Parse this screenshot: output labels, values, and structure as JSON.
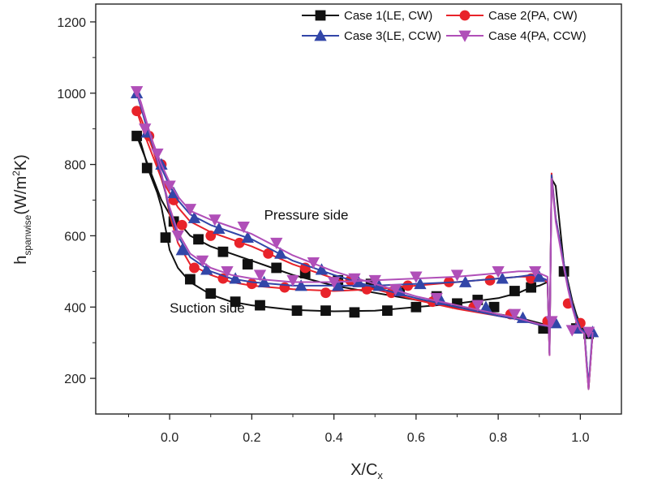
{
  "chart_data": {
    "type": "line",
    "xlabel": "X/C",
    "xlabel_sub": "x",
    "ylabel": "h",
    "ylabel_sub": "spanwise",
    "ylabel_unit_pre": "(W/m",
    "ylabel_unit_sup": "2",
    "ylabel_unit_post": "K)",
    "xlim": [
      -0.18,
      1.1
    ],
    "ylim": [
      100,
      1250
    ],
    "x_ticks": [
      0.0,
      0.2,
      0.4,
      0.6,
      0.8,
      1.0
    ],
    "x_tick_labels": [
      "0.0",
      "0.2",
      "0.4",
      "0.6",
      "0.8",
      "1.0"
    ],
    "y_ticks": [
      200,
      400,
      600,
      800,
      1000,
      1200
    ],
    "y_tick_labels": [
      "200",
      "400",
      "600",
      "800",
      "1000",
      "1200"
    ],
    "legend_placement": "top-right",
    "annotations": [
      {
        "text": "Pressure side",
        "x": 0.23,
        "y": 645
      },
      {
        "text": "Suction side",
        "x": 0.0,
        "y": 385
      }
    ],
    "series": [
      {
        "name": "Case 1(LE, CW)",
        "color": "#111111",
        "marker": "square",
        "suction": {
          "x": [
            -0.08,
            -0.07,
            -0.06,
            -0.05,
            -0.04,
            -0.03,
            -0.02,
            -0.01,
            0.0,
            0.02,
            0.05,
            0.1,
            0.15,
            0.2,
            0.3,
            0.4,
            0.5,
            0.6,
            0.7,
            0.8,
            0.85,
            0.88,
            0.9,
            0.92,
            0.925,
            0.93,
            0.94,
            0.96,
            0.97,
            0.98,
            0.99,
            1.0,
            1.01,
            1.015,
            1.02,
            1.03
          ],
          "y": [
            880,
            860,
            820,
            780,
            750,
            720,
            680,
            620,
            560,
            510,
            470,
            435,
            415,
            405,
            392,
            388,
            390,
            400,
            410,
            425,
            440,
            455,
            460,
            470,
            270,
            760,
            740,
            520,
            470,
            420,
            380,
            350,
            330,
            250,
            170,
            330
          ]
        },
        "pressure": {
          "x": [
            -0.08,
            -0.06,
            -0.04,
            -0.02,
            0.0,
            0.02,
            0.05,
            0.1,
            0.15,
            0.2,
            0.25,
            0.3,
            0.4,
            0.5,
            0.6,
            0.7,
            0.8,
            0.85,
            0.9,
            0.93
          ],
          "y": [
            880,
            820,
            760,
            700,
            660,
            640,
            600,
            570,
            550,
            530,
            510,
            490,
            460,
            440,
            420,
            400,
            380,
            370,
            355,
            345
          ]
        },
        "markers": [
          [
            -0.08,
            880
          ],
          [
            -0.055,
            790
          ],
          [
            -0.01,
            595
          ],
          [
            0.01,
            640
          ],
          [
            0.05,
            478
          ],
          [
            0.07,
            590
          ],
          [
            0.1,
            438
          ],
          [
            0.13,
            555
          ],
          [
            0.16,
            415
          ],
          [
            0.19,
            520
          ],
          [
            0.22,
            405
          ],
          [
            0.26,
            510
          ],
          [
            0.31,
            390
          ],
          [
            0.33,
            495
          ],
          [
            0.38,
            390
          ],
          [
            0.41,
            475
          ],
          [
            0.45,
            385
          ],
          [
            0.49,
            465
          ],
          [
            0.53,
            390
          ],
          [
            0.56,
            445
          ],
          [
            0.6,
            400
          ],
          [
            0.65,
            430
          ],
          [
            0.7,
            410
          ],
          [
            0.75,
            420
          ],
          [
            0.79,
            400
          ],
          [
            0.84,
            445
          ],
          [
            0.88,
            455
          ],
          [
            0.91,
            340
          ],
          [
            0.96,
            500
          ],
          [
            0.99,
            340
          ],
          [
            1.02,
            325
          ]
        ]
      },
      {
        "name": "Case 2(PA, CW)",
        "color": "#e8232a",
        "marker": "circle",
        "suction": {
          "x": [
            -0.08,
            -0.07,
            -0.06,
            -0.05,
            -0.04,
            -0.03,
            -0.02,
            -0.01,
            0.0,
            0.02,
            0.05,
            0.1,
            0.15,
            0.2,
            0.3,
            0.4,
            0.5,
            0.6,
            0.7,
            0.8,
            0.85,
            0.88,
            0.9,
            0.92,
            0.925,
            0.93,
            0.94,
            0.96,
            0.97,
            0.98,
            0.99,
            1.0,
            1.01,
            1.015,
            1.02,
            1.03
          ],
          "y": [
            950,
            930,
            900,
            870,
            840,
            800,
            760,
            720,
            660,
            580,
            520,
            490,
            470,
            460,
            450,
            445,
            450,
            460,
            470,
            480,
            485,
            485,
            480,
            470,
            265,
            775,
            650,
            520,
            460,
            410,
            370,
            340,
            330,
            240,
            170,
            330
          ]
        },
        "pressure": {
          "x": [
            -0.08,
            -0.06,
            -0.04,
            -0.02,
            0.0,
            0.02,
            0.05,
            0.1,
            0.15,
            0.2,
            0.25,
            0.3,
            0.4,
            0.5,
            0.6,
            0.7,
            0.8,
            0.85,
            0.9,
            0.93
          ],
          "y": [
            950,
            880,
            820,
            760,
            720,
            680,
            640,
            610,
            590,
            570,
            545,
            520,
            480,
            450,
            420,
            395,
            375,
            365,
            350,
            345
          ]
        },
        "markers": [
          [
            -0.08,
            950
          ],
          [
            -0.05,
            880
          ],
          [
            -0.02,
            800
          ],
          [
            0.01,
            700
          ],
          [
            0.03,
            630
          ],
          [
            0.06,
            510
          ],
          [
            0.1,
            600
          ],
          [
            0.13,
            480
          ],
          [
            0.17,
            580
          ],
          [
            0.2,
            465
          ],
          [
            0.24,
            550
          ],
          [
            0.28,
            455
          ],
          [
            0.33,
            510
          ],
          [
            0.38,
            440
          ],
          [
            0.44,
            475
          ],
          [
            0.48,
            450
          ],
          [
            0.54,
            440
          ],
          [
            0.58,
            460
          ],
          [
            0.64,
            415
          ],
          [
            0.68,
            470
          ],
          [
            0.74,
            400
          ],
          [
            0.78,
            475
          ],
          [
            0.83,
            380
          ],
          [
            0.88,
            480
          ],
          [
            0.92,
            360
          ],
          [
            0.97,
            410
          ],
          [
            1.0,
            355
          ]
        ]
      },
      {
        "name": "Case 3(LE, CCW)",
        "color": "#3246a8",
        "marker": "triangle-up",
        "suction": {
          "x": [
            -0.08,
            -0.07,
            -0.06,
            -0.05,
            -0.04,
            -0.03,
            -0.02,
            -0.01,
            0.0,
            0.02,
            0.05,
            0.1,
            0.15,
            0.2,
            0.3,
            0.4,
            0.5,
            0.6,
            0.7,
            0.8,
            0.85,
            0.88,
            0.9,
            0.92,
            0.925,
            0.93,
            0.94,
            0.96,
            0.97,
            0.98,
            0.99,
            1.0,
            1.01,
            1.015,
            1.02,
            1.03
          ],
          "y": [
            1000,
            970,
            930,
            890,
            850,
            810,
            770,
            720,
            670,
            600,
            540,
            500,
            480,
            470,
            460,
            460,
            460,
            465,
            470,
            480,
            485,
            490,
            485,
            475,
            270,
            770,
            650,
            520,
            460,
            410,
            370,
            340,
            330,
            250,
            180,
            340
          ]
        },
        "pressure": {
          "x": [
            -0.08,
            -0.06,
            -0.04,
            -0.02,
            0.0,
            0.02,
            0.05,
            0.1,
            0.15,
            0.2,
            0.25,
            0.3,
            0.4,
            0.5,
            0.6,
            0.7,
            0.8,
            0.85,
            0.9,
            0.93
          ],
          "y": [
            1000,
            920,
            850,
            790,
            740,
            700,
            660,
            630,
            610,
            590,
            560,
            530,
            490,
            455,
            425,
            400,
            375,
            365,
            350,
            345
          ]
        },
        "markers": [
          [
            -0.08,
            1000
          ],
          [
            -0.055,
            890
          ],
          [
            -0.02,
            800
          ],
          [
            0.01,
            720
          ],
          [
            0.03,
            560
          ],
          [
            0.06,
            650
          ],
          [
            0.09,
            505
          ],
          [
            0.12,
            620
          ],
          [
            0.16,
            480
          ],
          [
            0.19,
            595
          ],
          [
            0.23,
            470
          ],
          [
            0.27,
            550
          ],
          [
            0.32,
            460
          ],
          [
            0.37,
            505
          ],
          [
            0.41,
            460
          ],
          [
            0.46,
            470
          ],
          [
            0.51,
            460
          ],
          [
            0.56,
            445
          ],
          [
            0.61,
            465
          ],
          [
            0.66,
            420
          ],
          [
            0.72,
            470
          ],
          [
            0.77,
            400
          ],
          [
            0.81,
            480
          ],
          [
            0.86,
            370
          ],
          [
            0.9,
            485
          ],
          [
            0.94,
            355
          ],
          [
            0.99,
            340
          ],
          [
            1.03,
            330
          ]
        ]
      },
      {
        "name": "Case 4(PA, CCW)",
        "color": "#b04fb8",
        "marker": "triangle-down",
        "suction": {
          "x": [
            -0.08,
            -0.07,
            -0.06,
            -0.05,
            -0.04,
            -0.03,
            -0.02,
            -0.01,
            0.0,
            0.02,
            0.05,
            0.1,
            0.15,
            0.2,
            0.3,
            0.4,
            0.5,
            0.6,
            0.7,
            0.8,
            0.85,
            0.88,
            0.9,
            0.92,
            0.925,
            0.93,
            0.94,
            0.96,
            0.97,
            0.98,
            0.99,
            1.0,
            1.01,
            1.015,
            1.02,
            1.03
          ],
          "y": [
            1005,
            975,
            935,
            895,
            855,
            815,
            775,
            725,
            680,
            610,
            550,
            510,
            490,
            480,
            470,
            470,
            475,
            480,
            485,
            495,
            500,
            500,
            495,
            485,
            265,
            760,
            640,
            510,
            450,
            400,
            360,
            335,
            325,
            240,
            170,
            330
          ]
        },
        "pressure": {
          "x": [
            -0.08,
            -0.06,
            -0.04,
            -0.02,
            0.0,
            0.02,
            0.05,
            0.1,
            0.15,
            0.2,
            0.25,
            0.3,
            0.4,
            0.5,
            0.6,
            0.7,
            0.8,
            0.85,
            0.9,
            0.93
          ],
          "y": [
            1005,
            930,
            860,
            800,
            750,
            710,
            670,
            645,
            625,
            605,
            575,
            545,
            500,
            465,
            430,
            405,
            380,
            368,
            352,
            345
          ]
        },
        "markers": [
          [
            -0.08,
            1005
          ],
          [
            -0.06,
            900
          ],
          [
            -0.03,
            830
          ],
          [
            0.0,
            740
          ],
          [
            0.02,
            600
          ],
          [
            0.05,
            675
          ],
          [
            0.08,
            530
          ],
          [
            0.11,
            645
          ],
          [
            0.14,
            500
          ],
          [
            0.18,
            625
          ],
          [
            0.22,
            490
          ],
          [
            0.26,
            580
          ],
          [
            0.3,
            475
          ],
          [
            0.35,
            525
          ],
          [
            0.4,
            470
          ],
          [
            0.45,
            480
          ],
          [
            0.5,
            475
          ],
          [
            0.55,
            450
          ],
          [
            0.6,
            485
          ],
          [
            0.65,
            425
          ],
          [
            0.7,
            490
          ],
          [
            0.75,
            405
          ],
          [
            0.8,
            500
          ],
          [
            0.84,
            380
          ],
          [
            0.89,
            500
          ],
          [
            0.93,
            360
          ],
          [
            0.98,
            335
          ],
          [
            1.02,
            330
          ]
        ]
      }
    ]
  }
}
